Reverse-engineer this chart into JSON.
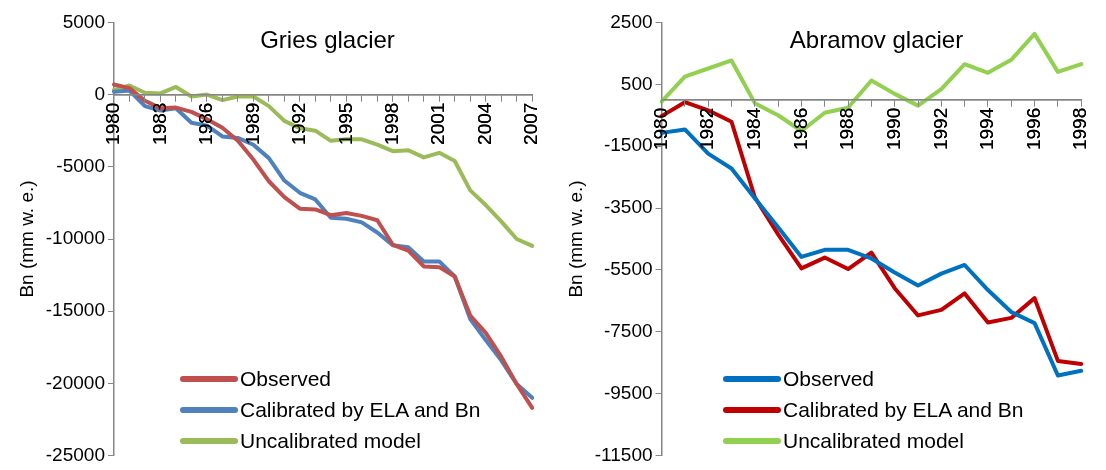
{
  "chart_data": [
    {
      "type": "line",
      "title": "Gries glacier",
      "ylabel": "Bn (mm w. e.)",
      "categories": [
        "1980",
        null,
        null,
        "1983",
        null,
        null,
        "1986",
        null,
        null,
        "1989",
        null,
        null,
        "1992",
        null,
        null,
        "1995",
        null,
        null,
        "1998",
        null,
        null,
        "2001",
        null,
        null,
        "2004",
        null,
        null,
        "2007"
      ],
      "ylim": [
        -25000,
        5000
      ],
      "yticks": [
        -25000,
        -20000,
        -15000,
        -10000,
        -5000,
        0,
        5000
      ],
      "legend": "bottom left",
      "marker": "none",
      "grid": false,
      "series": [
        {
          "name": "Observed",
          "color": "#c0504d",
          "values": [
            700,
            450,
            -430,
            -940,
            -900,
            -1200,
            -1700,
            -2300,
            -3200,
            -4500,
            -6000,
            -7100,
            -7900,
            -7950,
            -8350,
            -8200,
            -8400,
            -8700,
            -10400,
            -10800,
            -11900,
            -11950,
            -12600,
            -15300,
            -16500,
            -18150,
            -20050,
            -21700
          ]
        },
        {
          "name": "Calibrated by ELA and Bn",
          "color": "#4f81bd",
          "values": [
            200,
            280,
            -800,
            -1100,
            -940,
            -1950,
            -2150,
            -2900,
            -3000,
            -3470,
            -4400,
            -5950,
            -6800,
            -7260,
            -8530,
            -8600,
            -8850,
            -9550,
            -10430,
            -10570,
            -11550,
            -11550,
            -12600,
            -15550,
            -17000,
            -18400,
            -20050,
            -21000
          ]
        },
        {
          "name": "Uncalibrated model",
          "color": "#9bbb59",
          "values": [
            330,
            630,
            130,
            80,
            530,
            -130,
            0,
            -380,
            -130,
            -130,
            -800,
            -1820,
            -2330,
            -2500,
            -3200,
            -3100,
            -3100,
            -3470,
            -3920,
            -3850,
            -4350,
            -4030,
            -4600,
            -6630,
            -7650,
            -8780,
            -10000,
            -10480
          ]
        }
      ]
    },
    {
      "type": "line",
      "title": "Abramov glacier",
      "ylabel": "Bn (mm w. e.)",
      "categories": [
        "1980",
        null,
        "1982",
        null,
        "1984",
        null,
        "1986",
        null,
        "1988",
        null,
        "1990",
        null,
        "1992",
        null,
        "1994",
        null,
        "1996",
        null,
        "1998"
      ],
      "ylim": [
        -11500,
        2500
      ],
      "yticks": [
        -11500,
        -9500,
        -7500,
        -5500,
        -3500,
        -1500,
        500,
        2500
      ],
      "legend": "bottom left",
      "marker": "none",
      "grid": false,
      "series": [
        {
          "name": "Observed",
          "color": "#0070c0",
          "values": [
            -1070,
            -960,
            -1740,
            -2220,
            -3180,
            -4120,
            -5080,
            -4850,
            -4850,
            -5130,
            -5580,
            -6000,
            -5620,
            -5340,
            -6150,
            -6860,
            -7220,
            -8910,
            -8760
          ]
        },
        {
          "name": "Calibrated by ELA and Bn",
          "color": "#c00000",
          "values": [
            -530,
            -80,
            -340,
            -710,
            -3150,
            -4350,
            -5450,
            -5100,
            -5470,
            -4940,
            -6090,
            -6970,
            -6790,
            -6260,
            -7200,
            -7050,
            -6410,
            -8440,
            -8540
          ]
        },
        {
          "name": "Uncalibrated model",
          "color": "#92d050",
          "values": [
            -60,
            750,
            1010,
            1270,
            -110,
            -500,
            -1010,
            -420,
            -260,
            620,
            190,
            -190,
            340,
            1150,
            870,
            1290,
            2130,
            900,
            1150
          ]
        }
      ]
    }
  ]
}
